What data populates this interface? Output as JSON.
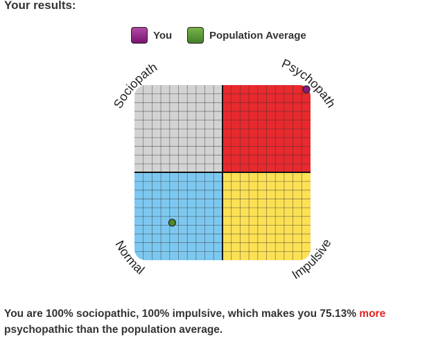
{
  "heading": "Your results:",
  "legend": [
    {
      "label": "You",
      "color": "#8a1a7e"
    },
    {
      "label": "Population Average",
      "color": "#4e8a2c"
    }
  ],
  "chart_data": {
    "type": "scatter",
    "x_axis": {
      "label": "impulsive",
      "range": [
        0,
        100
      ]
    },
    "y_axis": {
      "label": "sociopathic",
      "range": [
        0,
        100
      ]
    },
    "quadrants": [
      {
        "label": "Sociopath",
        "position": "top-left",
        "color": "#d3d3d3"
      },
      {
        "label": "Psychopath",
        "position": "top-right",
        "color": "#e8292d"
      },
      {
        "label": "Normal",
        "position": "bottom-left",
        "color": "#7dc8f0"
      },
      {
        "label": "Impulsive",
        "position": "bottom-right",
        "color": "#fce154"
      }
    ],
    "points": [
      {
        "series": "You",
        "x": 100,
        "y": 100,
        "color": "#8a1a7e"
      },
      {
        "series": "Population Average",
        "x": 20,
        "y": 20,
        "color": "#4e8a2c"
      }
    ]
  },
  "summary": {
    "text_before": "You are 100% sociopathic, 100% impulsive, which makes you 75.13% ",
    "highlight": "more",
    "text_after": " psychopathic than the population average."
  }
}
